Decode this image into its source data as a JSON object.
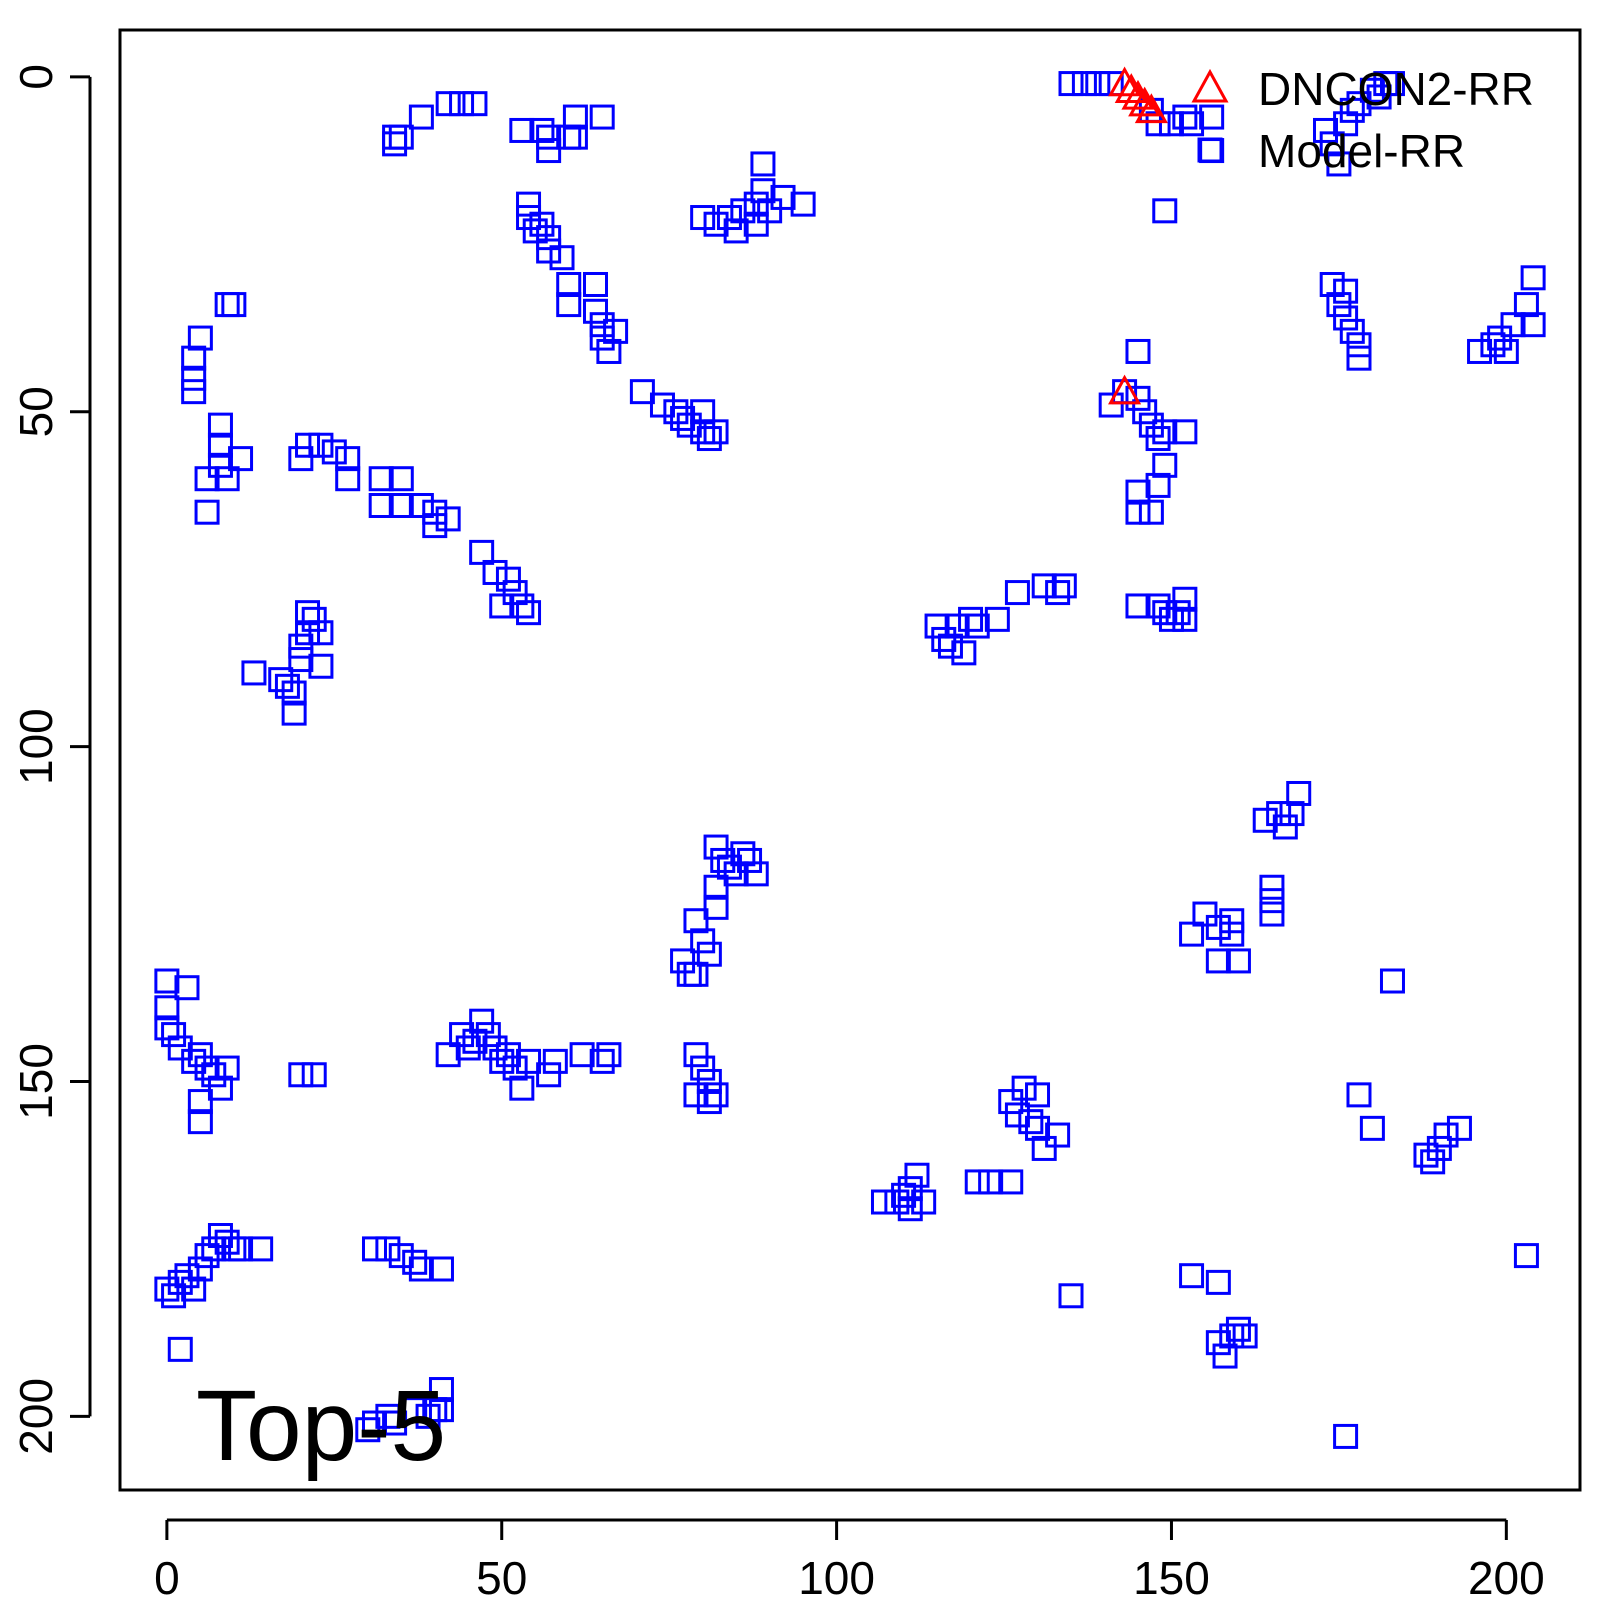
{
  "chart_data": {
    "type": "scatter",
    "title": "",
    "xlabel": "",
    "ylabel": "",
    "xlim": [
      -7,
      211
    ],
    "ylim": [
      211,
      -7
    ],
    "y_reversed": true,
    "grid": false,
    "x_ticks": [
      0,
      50,
      100,
      150,
      200
    ],
    "y_ticks": [
      0,
      50,
      100,
      150,
      200
    ],
    "legend": {
      "position": "top-right",
      "entries": [
        {
          "label": "DNCON2-RR",
          "marker": "triangle",
          "color": "#ff0000"
        },
        {
          "label": "Model-RR",
          "marker": "square",
          "color": "#0000ff"
        }
      ]
    },
    "annotation": "Top-5",
    "series": [
      {
        "name": "DNCON2-RR",
        "marker": "triangle",
        "color": "#ff0000",
        "points": [
          [
            143,
            1
          ],
          [
            144,
            2
          ],
          [
            145,
            3
          ],
          [
            146,
            4
          ],
          [
            147,
            5
          ],
          [
            143,
            47
          ]
        ]
      },
      {
        "name": "Model-RR",
        "marker": "square",
        "color": "#0000ff",
        "points": [
          [
            34,
            9
          ],
          [
            34,
            10
          ],
          [
            35,
            9
          ],
          [
            38,
            6
          ],
          [
            42,
            4
          ],
          [
            44,
            4
          ],
          [
            46,
            4
          ],
          [
            53,
            8
          ],
          [
            56,
            8
          ],
          [
            57,
            9
          ],
          [
            57,
            11
          ],
          [
            60,
            9
          ],
          [
            61,
            6
          ],
          [
            61,
            9
          ],
          [
            65,
            6
          ],
          [
            54,
            19
          ],
          [
            56,
            22
          ],
          [
            55,
            23
          ],
          [
            57,
            24
          ],
          [
            57,
            26
          ],
          [
            54,
            21
          ],
          [
            59,
            27
          ],
          [
            60,
            31
          ],
          [
            60,
            34
          ],
          [
            64,
            31
          ],
          [
            64,
            35
          ],
          [
            65,
            37
          ],
          [
            65,
            39
          ],
          [
            66,
            41
          ],
          [
            67,
            38
          ],
          [
            71,
            47
          ],
          [
            74,
            49
          ],
          [
            76,
            50
          ],
          [
            77,
            51
          ],
          [
            78,
            52
          ],
          [
            80,
            50
          ],
          [
            80,
            53
          ],
          [
            81,
            54
          ],
          [
            82,
            53
          ],
          [
            80,
            21
          ],
          [
            82,
            22
          ],
          [
            84,
            21
          ],
          [
            85,
            23
          ],
          [
            86,
            20
          ],
          [
            88,
            19
          ],
          [
            88,
            22
          ],
          [
            89,
            17
          ],
          [
            89,
            13
          ],
          [
            90,
            20
          ],
          [
            92,
            18
          ],
          [
            95,
            19
          ],
          [
            5,
            39
          ],
          [
            4,
            42
          ],
          [
            4,
            45
          ],
          [
            4,
            47
          ],
          [
            9,
            34
          ],
          [
            10,
            34
          ],
          [
            8,
            52
          ],
          [
            8,
            55
          ],
          [
            8,
            58
          ],
          [
            9,
            60
          ],
          [
            6,
            60
          ],
          [
            6,
            65
          ],
          [
            11,
            57
          ],
          [
            20,
            57
          ],
          [
            21,
            55
          ],
          [
            23,
            55
          ],
          [
            25,
            56
          ],
          [
            27,
            57
          ],
          [
            27,
            60
          ],
          [
            32,
            60
          ],
          [
            35,
            60
          ],
          [
            32,
            64
          ],
          [
            35,
            64
          ],
          [
            38,
            64
          ],
          [
            40,
            65
          ],
          [
            40,
            67
          ],
          [
            42,
            66
          ],
          [
            47,
            71
          ],
          [
            49,
            74
          ],
          [
            51,
            75
          ],
          [
            52,
            77
          ],
          [
            53,
            79
          ],
          [
            54,
            80
          ],
          [
            50,
            79
          ],
          [
            13,
            89
          ],
          [
            17,
            90
          ],
          [
            18,
            91
          ],
          [
            19,
            92
          ],
          [
            19,
            95
          ],
          [
            20,
            87
          ],
          [
            20,
            85
          ],
          [
            21,
            83
          ],
          [
            21,
            80
          ],
          [
            22,
            81
          ],
          [
            23,
            83
          ],
          [
            23,
            88
          ],
          [
            115,
            82
          ],
          [
            116,
            84
          ],
          [
            117,
            85
          ],
          [
            118,
            82
          ],
          [
            119,
            86
          ],
          [
            120,
            81
          ],
          [
            121,
            82
          ],
          [
            124,
            81
          ],
          [
            127,
            77
          ],
          [
            131,
            76
          ],
          [
            133,
            77
          ],
          [
            134,
            76
          ],
          [
            145,
            41
          ],
          [
            143,
            47
          ],
          [
            141,
            49
          ],
          [
            145,
            48
          ],
          [
            146,
            50
          ],
          [
            147,
            52
          ],
          [
            148,
            54
          ],
          [
            149,
            53
          ],
          [
            152,
            53
          ],
          [
            149,
            58
          ],
          [
            148,
            61
          ],
          [
            145,
            62
          ],
          [
            145,
            65
          ],
          [
            147,
            65
          ],
          [
            145,
            79
          ],
          [
            148,
            79
          ],
          [
            149,
            80
          ],
          [
            150,
            81
          ],
          [
            151,
            80
          ],
          [
            152,
            81
          ],
          [
            152,
            78
          ],
          [
            135,
            1
          ],
          [
            137,
            1
          ],
          [
            139,
            1
          ],
          [
            141,
            1
          ],
          [
            147,
            5
          ],
          [
            148,
            7
          ],
          [
            150,
            7
          ],
          [
            152,
            6
          ],
          [
            153,
            7
          ],
          [
            156,
            6
          ],
          [
            156,
            11
          ],
          [
            149,
            20
          ],
          [
            173,
            8
          ],
          [
            174,
            10
          ],
          [
            175,
            13
          ],
          [
            176,
            7
          ],
          [
            177,
            5
          ],
          [
            178,
            4
          ],
          [
            180,
            2
          ],
          [
            181,
            3
          ],
          [
            182,
            1
          ],
          [
            183,
            1
          ],
          [
            174,
            31
          ],
          [
            176,
            32
          ],
          [
            175,
            34
          ],
          [
            176,
            36
          ],
          [
            177,
            38
          ],
          [
            178,
            40
          ],
          [
            178,
            42
          ],
          [
            196,
            41
          ],
          [
            198,
            40
          ],
          [
            199,
            39
          ],
          [
            200,
            41
          ],
          [
            201,
            37
          ],
          [
            203,
            34
          ],
          [
            204,
            30
          ],
          [
            204,
            37
          ],
          [
            164,
            111
          ],
          [
            166,
            110
          ],
          [
            167,
            112
          ],
          [
            168,
            110
          ],
          [
            169,
            107
          ],
          [
            165,
            121
          ],
          [
            165,
            123
          ],
          [
            165,
            125
          ],
          [
            153,
            128
          ],
          [
            155,
            125
          ],
          [
            157,
            127
          ],
          [
            159,
            126
          ],
          [
            159,
            128
          ],
          [
            160,
            132
          ],
          [
            157,
            132
          ],
          [
            183,
            135
          ],
          [
            79,
            126
          ],
          [
            80,
            129
          ],
          [
            81,
            131
          ],
          [
            77,
            132
          ],
          [
            78,
            134
          ],
          [
            79,
            134
          ],
          [
            82,
            115
          ],
          [
            83,
            117
          ],
          [
            84,
            118
          ],
          [
            85,
            119
          ],
          [
            86,
            116
          ],
          [
            87,
            117
          ],
          [
            88,
            119
          ],
          [
            82,
            121
          ],
          [
            82,
            124
          ],
          [
            0,
            135
          ],
          [
            0,
            139
          ],
          [
            0,
            142
          ],
          [
            1,
            143
          ],
          [
            2,
            145
          ],
          [
            3,
            136
          ],
          [
            4,
            147
          ],
          [
            5,
            146
          ],
          [
            6,
            148
          ],
          [
            7,
            149
          ],
          [
            8,
            151
          ],
          [
            9,
            148
          ],
          [
            5,
            153
          ],
          [
            5,
            156
          ],
          [
            20,
            149
          ],
          [
            22,
            149
          ],
          [
            42,
            146
          ],
          [
            44,
            143
          ],
          [
            45,
            145
          ],
          [
            46,
            144
          ],
          [
            47,
            141
          ],
          [
            48,
            143
          ],
          [
            49,
            145
          ],
          [
            50,
            147
          ],
          [
            51,
            146
          ],
          [
            52,
            148
          ],
          [
            53,
            151
          ],
          [
            54,
            147
          ],
          [
            57,
            149
          ],
          [
            58,
            147
          ],
          [
            62,
            146
          ],
          [
            65,
            147
          ],
          [
            66,
            146
          ],
          [
            79,
            146
          ],
          [
            80,
            148
          ],
          [
            81,
            150
          ],
          [
            82,
            152
          ],
          [
            79,
            152
          ],
          [
            81,
            153
          ],
          [
            128,
            151
          ],
          [
            126,
            153
          ],
          [
            127,
            155
          ],
          [
            129,
            156
          ],
          [
            130,
            157
          ],
          [
            131,
            160
          ],
          [
            133,
            158
          ],
          [
            130,
            152
          ],
          [
            107,
            168
          ],
          [
            109,
            168
          ],
          [
            110,
            167
          ],
          [
            111,
            166
          ],
          [
            111,
            169
          ],
          [
            112,
            164
          ],
          [
            113,
            168
          ],
          [
            121,
            165
          ],
          [
            123,
            165
          ],
          [
            126,
            165
          ],
          [
            178,
            152
          ],
          [
            180,
            157
          ],
          [
            188,
            161
          ],
          [
            189,
            162
          ],
          [
            190,
            160
          ],
          [
            191,
            158
          ],
          [
            193,
            157
          ],
          [
            0,
            181
          ],
          [
            1,
            182
          ],
          [
            2,
            180
          ],
          [
            3,
            179
          ],
          [
            4,
            181
          ],
          [
            5,
            178
          ],
          [
            6,
            176
          ],
          [
            7,
            175
          ],
          [
            8,
            173
          ],
          [
            9,
            174
          ],
          [
            10,
            175
          ],
          [
            11,
            175
          ],
          [
            14,
            175
          ],
          [
            2,
            190
          ],
          [
            31,
            175
          ],
          [
            33,
            175
          ],
          [
            35,
            176
          ],
          [
            37,
            177
          ],
          [
            38,
            178
          ],
          [
            41,
            178
          ],
          [
            153,
            179
          ],
          [
            157,
            180
          ],
          [
            135,
            182
          ],
          [
            203,
            176
          ],
          [
            157,
            189
          ],
          [
            158,
            191
          ],
          [
            159,
            188
          ],
          [
            160,
            187
          ],
          [
            161,
            188
          ],
          [
            30,
            202
          ],
          [
            31,
            201
          ],
          [
            33,
            200
          ],
          [
            34,
            201
          ],
          [
            37,
            199
          ],
          [
            39,
            200
          ],
          [
            40,
            199
          ],
          [
            41,
            196
          ],
          [
            41,
            199
          ],
          [
            176,
            203
          ]
        ]
      }
    ]
  }
}
